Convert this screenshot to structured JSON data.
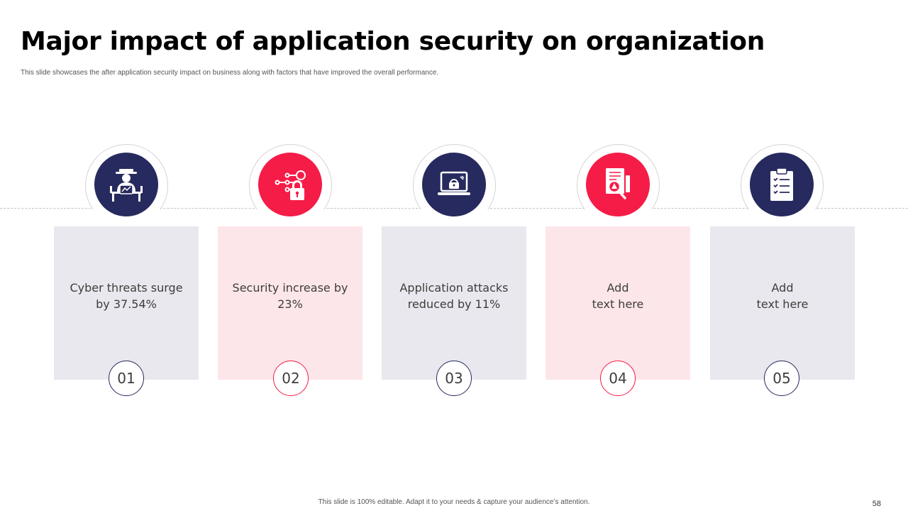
{
  "slide": {
    "title": "Major impact of application security on organization",
    "subtitle": "This slide showcases the after application security impact on business along with factors that have improved the overall performance.",
    "footer": "This slide is 100% editable. Adapt it to your needs & capture your audience’s attention.",
    "page_number": "58"
  },
  "items": [
    {
      "number": "01",
      "text": "Cyber threats surge\nby 37.54%",
      "icon": "hacker-icon",
      "color": "#272a5e"
    },
    {
      "number": "02",
      "text": "Security increase by\n23%",
      "icon": "padlock-gear-icon",
      "color": "#f51c48"
    },
    {
      "number": "03",
      "text": "Application attacks\nreduced by 11%",
      "icon": "laptop-lock-icon",
      "color": "#272a5e"
    },
    {
      "number": "04",
      "text": "Add\ntext here",
      "icon": "document-search-icon",
      "color": "#f51c48"
    },
    {
      "number": "05",
      "text": "Add\ntext here",
      "icon": "clipboard-checklist-icon",
      "color": "#272a5e"
    }
  ],
  "colors": {
    "navy": "#272a5e",
    "red": "#f51c48",
    "card_gray": "#e8e8ee",
    "card_pink": "#fde6e9"
  }
}
